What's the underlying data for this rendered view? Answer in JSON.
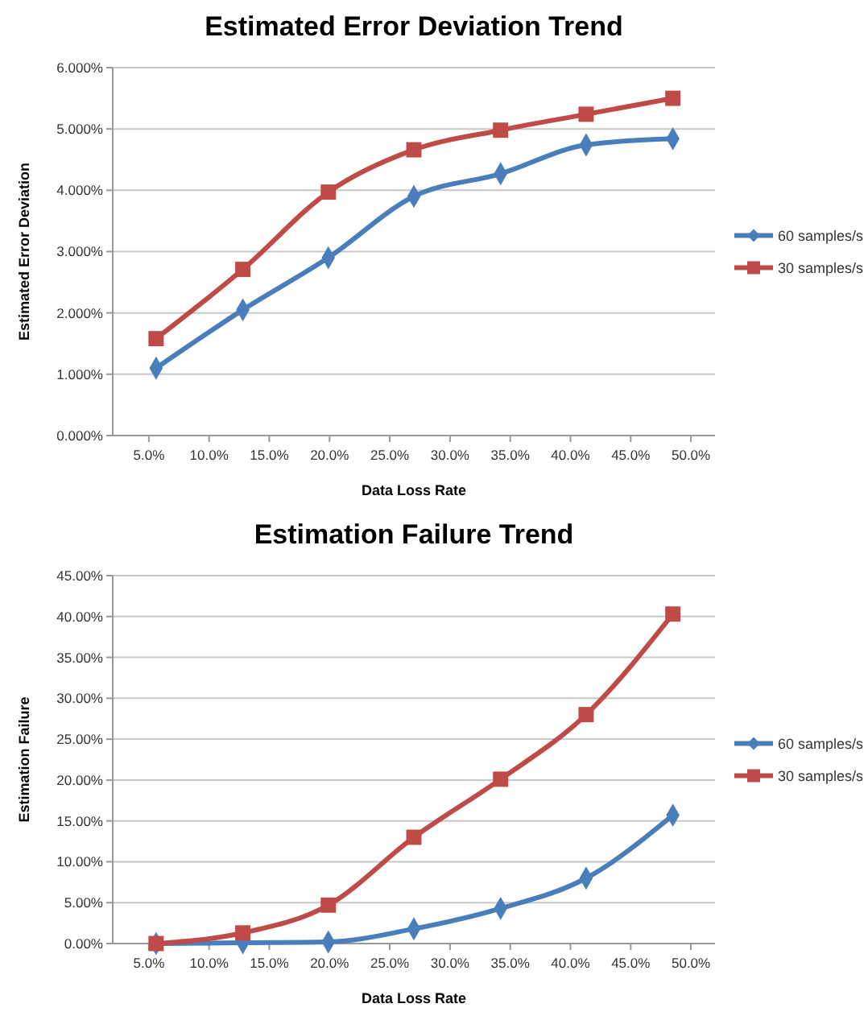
{
  "chart_data": [
    {
      "type": "line",
      "title": "Estimated Error Deviation Trend",
      "xlabel": "Data Loss Rate",
      "ylabel": "Estimated Error Deviation",
      "x": [
        5.6,
        12.8,
        19.9,
        27.0,
        34.2,
        41.3,
        48.5
      ],
      "series": [
        {
          "name": "60 samples/s",
          "color": "#4a7ebb",
          "marker": "diamond",
          "values": [
            1.1,
            2.05,
            2.9,
            3.9,
            4.27,
            4.74,
            4.84
          ]
        },
        {
          "name": "30 samples/s",
          "color": "#be4b48",
          "marker": "square",
          "values": [
            1.58,
            2.71,
            3.97,
            4.66,
            4.98,
            5.24,
            5.5
          ]
        }
      ],
      "xlim": [
        2,
        52
      ],
      "xticks": [
        {
          "value": 5,
          "label": "5.0%"
        },
        {
          "value": 10,
          "label": "10.0%"
        },
        {
          "value": 15,
          "label": "15.0%"
        },
        {
          "value": 20,
          "label": "20.0%"
        },
        {
          "value": 25,
          "label": "25.0%"
        },
        {
          "value": 30,
          "label": "30.0%"
        },
        {
          "value": 35,
          "label": "35.0%"
        },
        {
          "value": 40,
          "label": "40.0%"
        },
        {
          "value": 45,
          "label": "45.0%"
        },
        {
          "value": 50,
          "label": "50.0%"
        }
      ],
      "ylim": [
        0,
        6
      ],
      "yticks": [
        {
          "value": 0,
          "label": "0.000%"
        },
        {
          "value": 1,
          "label": "1.000%"
        },
        {
          "value": 2,
          "label": "2.000%"
        },
        {
          "value": 3,
          "label": "3.000%"
        },
        {
          "value": 4,
          "label": "4.000%"
        },
        {
          "value": 5,
          "label": "5.000%"
        },
        {
          "value": 6,
          "label": "6.000%"
        }
      ],
      "grid": "y",
      "legend": "right",
      "line_style": "solid"
    },
    {
      "type": "line",
      "title": "Estimation Failure Trend",
      "xlabel": "Data Loss Rate",
      "ylabel": "Estimation Failure",
      "x": [
        5.6,
        12.8,
        19.9,
        27.0,
        34.2,
        41.3,
        48.5
      ],
      "series": [
        {
          "name": "60 samples/s",
          "color": "#4a7ebb",
          "marker": "diamond",
          "values": [
            0,
            0.1,
            0.2,
            1.8,
            4.3,
            8.0,
            15.7
          ]
        },
        {
          "name": "30 samples/s",
          "color": "#be4b48",
          "marker": "square",
          "values": [
            0,
            1.3,
            4.7,
            13.0,
            20.1,
            28.0,
            40.3
          ]
        }
      ],
      "xlim": [
        2,
        52
      ],
      "xticks": [
        {
          "value": 5,
          "label": "5.0%"
        },
        {
          "value": 10,
          "label": "10.0%"
        },
        {
          "value": 15,
          "label": "15.0%"
        },
        {
          "value": 20,
          "label": "20.0%"
        },
        {
          "value": 25,
          "label": "25.0%"
        },
        {
          "value": 30,
          "label": "30.0%"
        },
        {
          "value": 35,
          "label": "35.0%"
        },
        {
          "value": 40,
          "label": "40.0%"
        },
        {
          "value": 45,
          "label": "45.0%"
        },
        {
          "value": 50,
          "label": "50.0%"
        }
      ],
      "ylim": [
        0,
        45
      ],
      "yticks": [
        {
          "value": 0,
          "label": "0.00%"
        },
        {
          "value": 5,
          "label": "5.00%"
        },
        {
          "value": 10,
          "label": "10.00%"
        },
        {
          "value": 15,
          "label": "15.00%"
        },
        {
          "value": 20,
          "label": "20.00%"
        },
        {
          "value": 25,
          "label": "25.00%"
        },
        {
          "value": 30,
          "label": "30.00%"
        },
        {
          "value": 35,
          "label": "35.00%"
        },
        {
          "value": 40,
          "label": "40.00%"
        },
        {
          "value": 45,
          "label": "45.00%"
        }
      ],
      "grid": "y",
      "legend": "right",
      "line_style": "solid"
    }
  ]
}
